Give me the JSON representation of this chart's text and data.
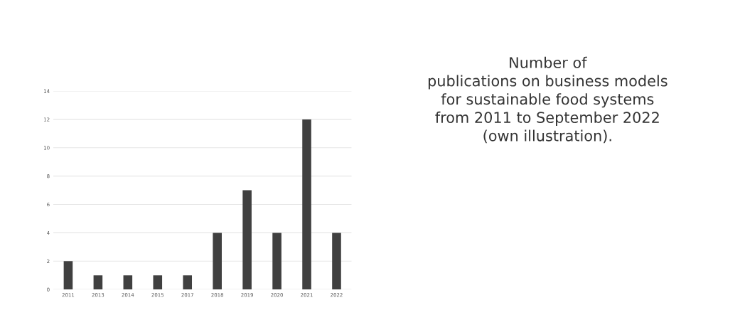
{
  "chart_data": {
    "type": "bar",
    "title": "Number of\npublications on business models\nfor sustainable food systems\nfrom 2011 to September 2022\n(own illustration).",
    "categories": [
      "2011",
      "2013",
      "2014",
      "2015",
      "2017",
      "2018",
      "2019",
      "2020",
      "2021",
      "2022"
    ],
    "values": [
      2,
      1,
      1,
      1,
      1,
      4,
      7,
      4,
      12,
      4
    ],
    "color": "#404040",
    "ylim": [
      0,
      14
    ],
    "yticks": [
      0,
      2,
      4,
      6,
      8,
      10,
      12,
      14
    ],
    "grid": "y"
  }
}
